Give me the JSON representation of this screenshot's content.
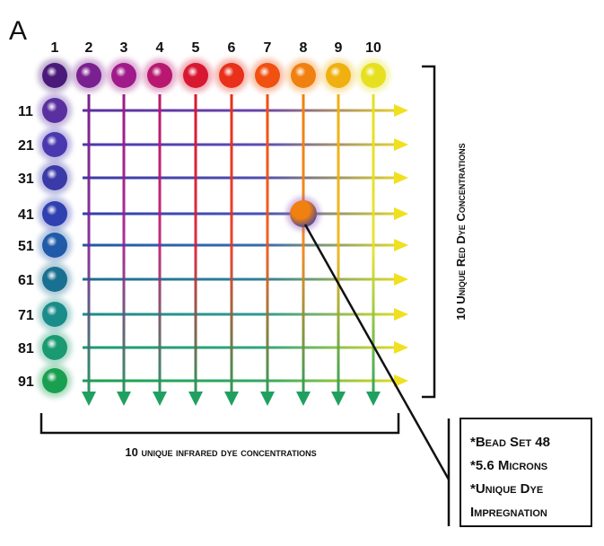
{
  "panel_label": "A",
  "columns": {
    "labels": [
      "1",
      "2",
      "3",
      "4",
      "5",
      "6",
      "7",
      "8",
      "9",
      "10"
    ],
    "colors": [
      "#4a1a7a",
      "#7a2090",
      "#a01a8a",
      "#b81870",
      "#d81830",
      "#e8301a",
      "#f05010",
      "#f08010",
      "#f0b010",
      "#e6e020"
    ]
  },
  "rows": {
    "labels": [
      "11",
      "21",
      "31",
      "41",
      "51",
      "61",
      "71",
      "81",
      "91"
    ],
    "colors": [
      "#5a30a0",
      "#4a38b0",
      "#3a3aa8",
      "#3040b0",
      "#205aa8",
      "#1a7090",
      "#1a8c8a",
      "#1a9a70",
      "#18a050"
    ]
  },
  "arrow_colors": {
    "horizontal_end": "#f0e020",
    "vertical_end": "#20a060"
  },
  "highlighted_bead": {
    "column": "8",
    "row": "41"
  },
  "right_axis_label": "10 Unique Red Dye Concentrations",
  "bottom_axis_label": "10 unique infrared dye concentrations",
  "callout": {
    "lines": [
      "*Bead Set 48",
      "*5.6 Microns",
      "*Unique Dye",
      "Impregnation"
    ]
  }
}
